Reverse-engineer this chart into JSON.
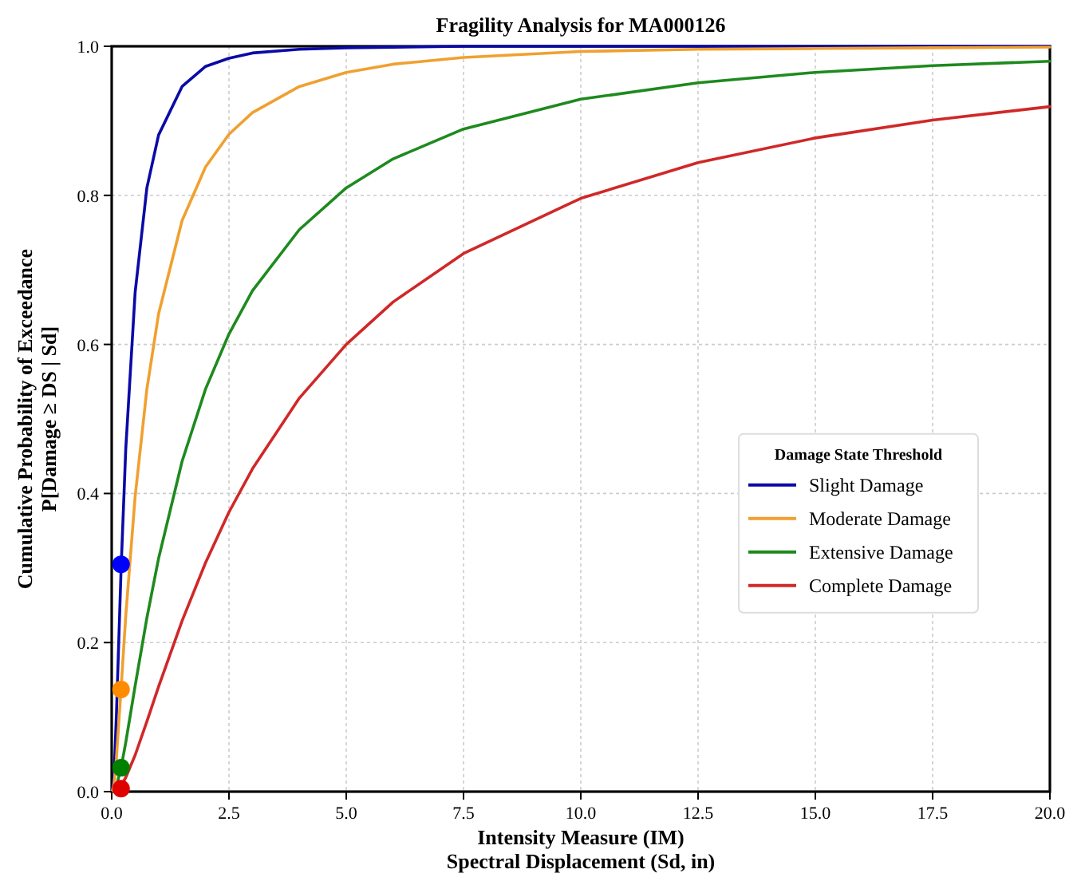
{
  "chart_data": {
    "type": "line",
    "title": "Fragility Analysis for MA000126",
    "xlabel": "Intensity Measure (IM)\nSpectral Displacement (Sd, in)",
    "ylabel": "Cumulative Probability of Exceedance\nP[Damage ≥ DS | Sd]",
    "legend_title": "Damage State Threshold",
    "legend": "right",
    "grid": true,
    "marker": "none",
    "line_style": "solid",
    "xlim": [
      0,
      20
    ],
    "ylim": [
      0,
      1
    ],
    "xticks": [
      {
        "value": 0,
        "label": "0.0"
      },
      {
        "value": 2.5,
        "label": "2.5"
      },
      {
        "value": 5,
        "label": "5.0"
      },
      {
        "value": 7.5,
        "label": "7.5"
      },
      {
        "value": 10,
        "label": "10.0"
      },
      {
        "value": 12.5,
        "label": "12.5"
      },
      {
        "value": 15,
        "label": "15.0"
      },
      {
        "value": 17.5,
        "label": "17.5"
      },
      {
        "value": 20,
        "label": "20.0"
      }
    ],
    "yticks": [
      {
        "value": 0,
        "label": "0.0"
      },
      {
        "value": 0.2,
        "label": "0.2"
      },
      {
        "value": 0.4,
        "label": "0.4"
      },
      {
        "value": 0.6,
        "label": "0.6"
      },
      {
        "value": 0.8,
        "label": "0.8"
      },
      {
        "value": 1,
        "label": "1.0"
      }
    ],
    "series": [
      {
        "name": "Slight Damage",
        "color": "#0a0aa8",
        "x": [
          0.01,
          0.05,
          0.1,
          0.2,
          0.3,
          0.5,
          0.75,
          1,
          1.5,
          2,
          2.5,
          3,
          4,
          5,
          7.5,
          10,
          15,
          20
        ],
        "values": [
          0,
          0.022,
          0.102,
          0.298,
          0.46,
          0.67,
          0.81,
          0.881,
          0.946,
          0.973,
          0.984,
          0.991,
          0.996,
          0.998,
          1,
          1,
          1,
          1
        ]
      },
      {
        "name": "Moderate Damage",
        "color": "#f0a030",
        "x": [
          0.01,
          0.05,
          0.1,
          0.2,
          0.3,
          0.5,
          0.75,
          1,
          1.5,
          2,
          2.5,
          3,
          4,
          5,
          6,
          7.5,
          10,
          12.5,
          15,
          17.5,
          20
        ],
        "values": [
          0,
          0.01,
          0.044,
          0.138,
          0.236,
          0.396,
          0.54,
          0.641,
          0.766,
          0.838,
          0.882,
          0.911,
          0.946,
          0.965,
          0.976,
          0.985,
          0.993,
          0.996,
          0.997,
          0.998,
          0.999
        ]
      },
      {
        "name": "Extensive Damage",
        "color": "#1e8a1e",
        "x": [
          0.05,
          0.1,
          0.2,
          0.3,
          0.5,
          0.75,
          1,
          1.5,
          2,
          2.5,
          3,
          4,
          5,
          6,
          7.5,
          10,
          12.5,
          15,
          17.5,
          20
        ],
        "values": [
          0.001,
          0.007,
          0.032,
          0.066,
          0.142,
          0.233,
          0.313,
          0.443,
          0.54,
          0.614,
          0.672,
          0.754,
          0.81,
          0.849,
          0.889,
          0.929,
          0.951,
          0.965,
          0.974,
          0.98
        ]
      },
      {
        "name": "Complete Damage",
        "color": "#d02828",
        "x": [
          0.1,
          0.2,
          0.3,
          0.5,
          0.75,
          1,
          1.5,
          2,
          2.5,
          3,
          4,
          5,
          6,
          7.5,
          10,
          12.5,
          15,
          17.5,
          20
        ],
        "values": [
          0.001,
          0.008,
          0.019,
          0.049,
          0.094,
          0.141,
          0.229,
          0.307,
          0.375,
          0.433,
          0.528,
          0.6,
          0.657,
          0.722,
          0.796,
          0.844,
          0.877,
          0.901,
          0.919
        ]
      },
      {
        "type": "scatter",
        "marker": "circle",
        "x": [
          0.2,
          0.2,
          0.2,
          0.2
        ],
        "values": [
          0.305,
          0.137,
          0.032,
          0.004
        ],
        "colors": [
          "#0000ff",
          "#ff8c00",
          "#008000",
          "#e00000"
        ]
      }
    ]
  }
}
